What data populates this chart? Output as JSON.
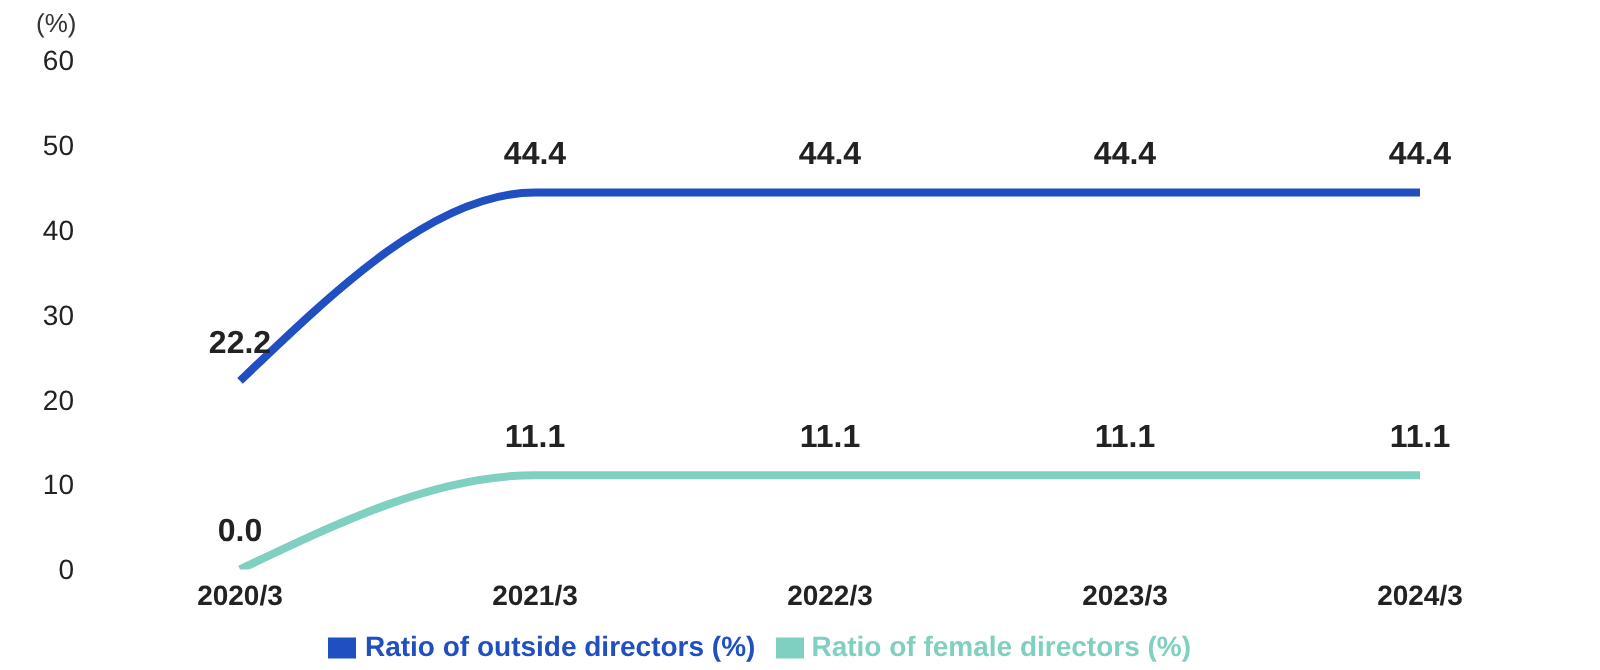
{
  "chart_data": {
    "type": "line",
    "ylabel": "(%)",
    "categories": [
      "2020/3",
      "2021/3",
      "2022/3",
      "2023/3",
      "2024/3"
    ],
    "ylim": [
      0,
      60
    ],
    "yticks": [
      0,
      10,
      20,
      30,
      40,
      50,
      60
    ],
    "grid": false,
    "legend": "bottom",
    "marker": "none",
    "line_style": "solid",
    "series": [
      {
        "name": "Ratio of outside directors (%)",
        "color": "#1f4fc1",
        "values": [
          22.2,
          44.4,
          44.4,
          44.4,
          44.4
        ],
        "value_labels": [
          "22.2",
          "44.4",
          "44.4",
          "44.4",
          "44.4"
        ]
      },
      {
        "name": "Ratio of female directors (%)",
        "color": "#7fd0c0",
        "values": [
          0.0,
          11.1,
          11.1,
          11.1,
          11.1
        ],
        "value_labels": [
          "0.0",
          "11.1",
          "11.1",
          "11.1",
          "11.1"
        ]
      }
    ]
  }
}
